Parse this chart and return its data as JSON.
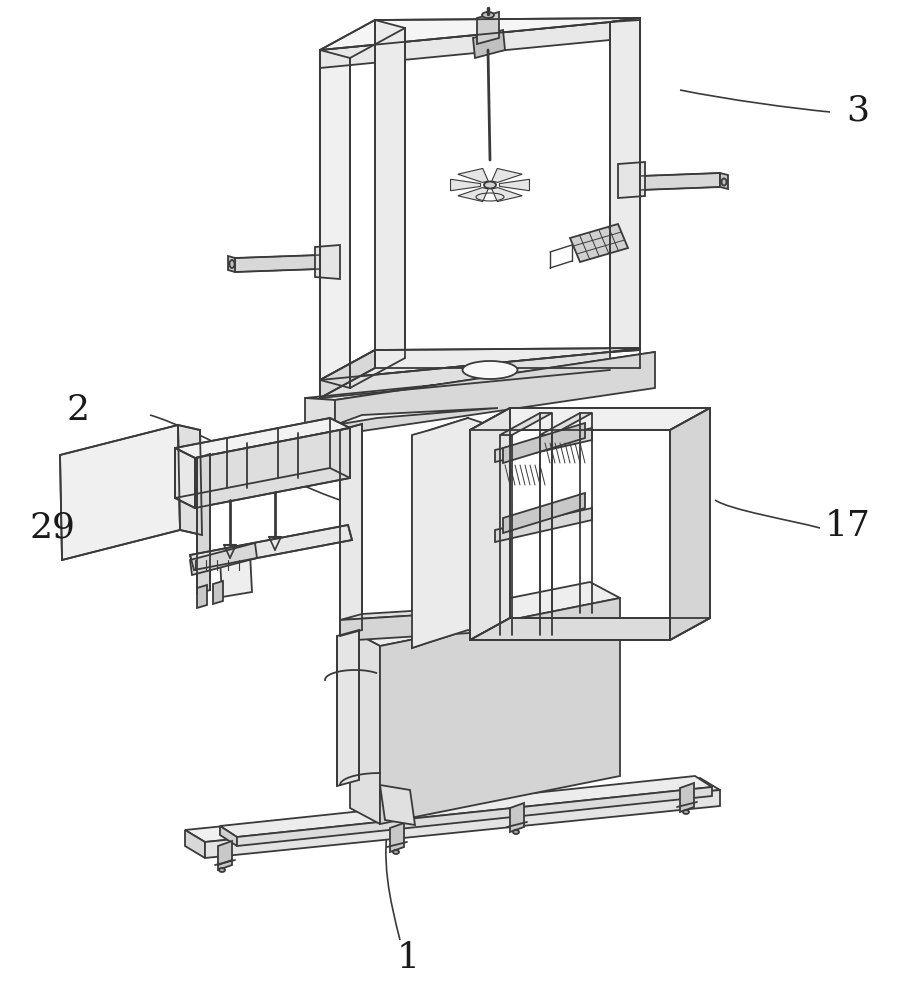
{
  "background_color": "#ffffff",
  "line_color": "#3a3a3a",
  "line_width": 1.3,
  "label_fontsize": 26,
  "label_color": "#1a1a1a",
  "fig_width": 9.04,
  "fig_height": 10.0,
  "dpi": 100
}
